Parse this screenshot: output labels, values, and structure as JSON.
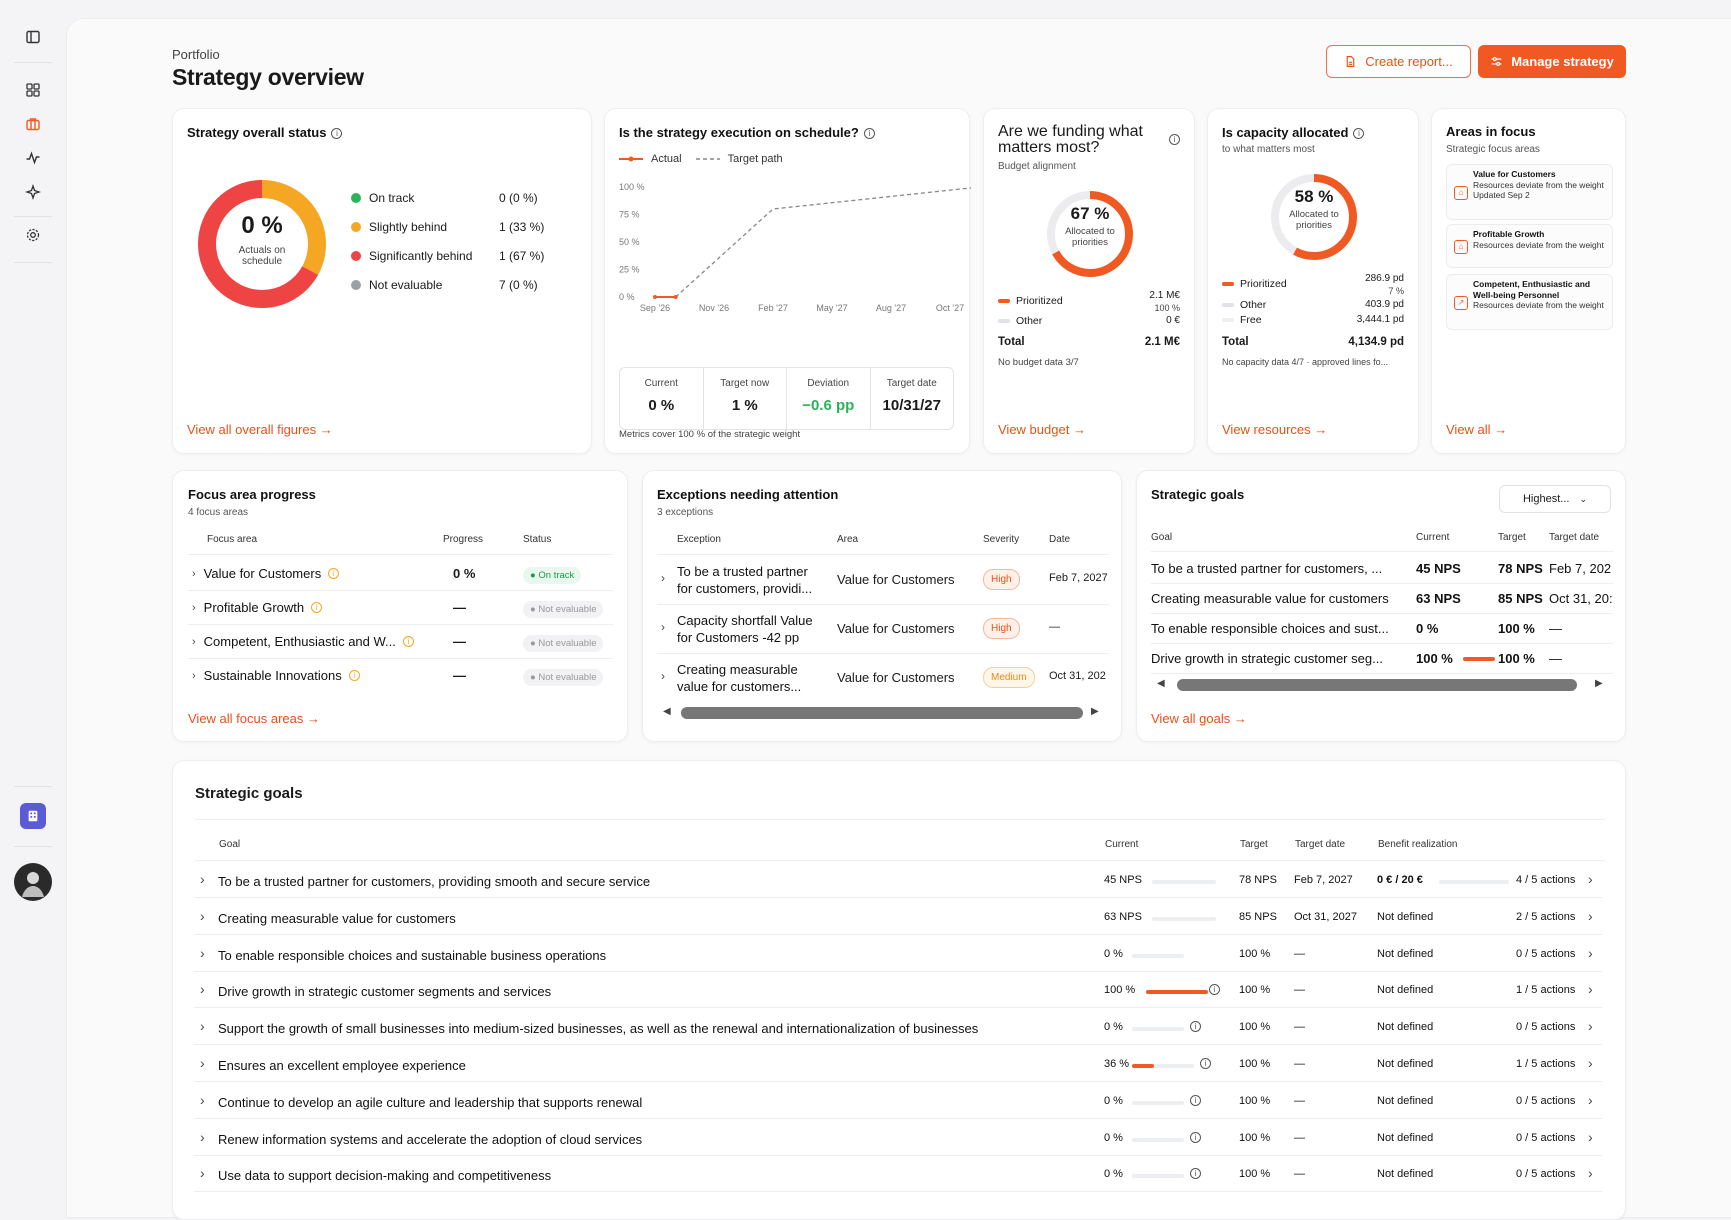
{
  "header": {
    "breadcrumb": "Portfolio",
    "title": "Strategy overview",
    "create_report": "Create report...",
    "manage_strategy": "Manage strategy"
  },
  "status_card": {
    "title": "Strategy overall status",
    "donut_value": "0 %",
    "donut_label": "Actuals on schedule",
    "legend": [
      {
        "label": "On track",
        "value": "0 (0 %)",
        "color": "#2bb35a",
        "fraction": 0
      },
      {
        "label": "Slightly behind",
        "value": "1 (33 %)",
        "color": "#f5a623",
        "fraction": 0.33
      },
      {
        "label": "Significantly behind",
        "value": "1 (67 %)",
        "color": "#ef4444",
        "fraction": 0.67
      },
      {
        "label": "Not evaluable",
        "value": "7 (0 %)",
        "color": "#9aa0a8",
        "fraction": 0
      }
    ],
    "link": "View all overall figures"
  },
  "schedule_card": {
    "title": "Is the strategy execution on schedule?",
    "legend_actual": "Actual",
    "legend_target": "Target path",
    "metrics": [
      {
        "label": "Current",
        "value": "0 %"
      },
      {
        "label": "Target now",
        "value": "1 %"
      },
      {
        "label": "Deviation",
        "value": "−0.6 pp"
      },
      {
        "label": "Target date",
        "value": "10/31/27"
      }
    ],
    "footnote": "Metrics cover 100 % of the strategic weight"
  },
  "chart_data": {
    "type": "line",
    "x": [
      "Sep '26",
      "Nov '26",
      "Feb '27",
      "May '27",
      "Aug '27",
      "Oct '27"
    ],
    "yticks": [
      "100 %",
      "75 %",
      "50 %",
      "25 %",
      "0 %"
    ],
    "ylim": [
      0,
      100
    ],
    "series": [
      {
        "name": "Actual",
        "points": [
          [
            0,
            0
          ],
          [
            0.35,
            0
          ]
        ]
      },
      {
        "name": "Target path",
        "points": [
          [
            0.35,
            0
          ],
          [
            2,
            80
          ],
          [
            5.5,
            100
          ]
        ]
      }
    ]
  },
  "budget_card": {
    "title": "Are we funding what matters most?",
    "subtitle": "Budget alignment",
    "donut_value": "67 %",
    "donut_label": "Allocated to priorities",
    "fraction": 0.67,
    "rows": [
      {
        "label": "Prioritized",
        "value": "2.1 M€",
        "sub": "100 %"
      },
      {
        "label": "Other",
        "value": "0 €"
      }
    ],
    "total_label": "Total",
    "total_value": "2.1 M€",
    "note": "No budget data 3/7",
    "link": "View budget"
  },
  "capacity_card": {
    "title": "Is capacity allocated",
    "subtitle": "to what matters most",
    "donut_value": "58 %",
    "donut_label": "Allocated to priorities",
    "fraction": 0.58,
    "rows": [
      {
        "label": "Prioritized",
        "value": "286.9 pd",
        "sub": "7 %"
      },
      {
        "label": "Other",
        "value": "403.9 pd"
      },
      {
        "label": "Free",
        "value": "3,444.1 pd"
      }
    ],
    "total_label": "Total",
    "total_value": "4,134.9 pd",
    "note": "No capacity data 4/7 · approved lines fo...",
    "link": "View resources"
  },
  "areas_card": {
    "title": "Areas in focus",
    "subtitle": "Strategic focus areas",
    "items": [
      {
        "name": "Value for Customers",
        "desc": "Resources deviate from the weight",
        "extra": "Updated Sep 2"
      },
      {
        "name": "Profitable Growth",
        "desc": "Resources deviate from the weight",
        "extra": ""
      },
      {
        "name": "Competent, Enthusiastic and Well-being Personnel",
        "desc": "Resources deviate from the weight",
        "extra": ""
      }
    ],
    "link": "View all"
  },
  "focus_card": {
    "title": "Focus area progress",
    "subtitle": "4 focus areas",
    "headers": [
      "Focus area",
      "Progress",
      "Status"
    ],
    "rows": [
      {
        "name": "Value for Customers",
        "progress": "0 %",
        "status": "On track"
      },
      {
        "name": "Profitable Growth",
        "progress": "—",
        "status": "Not evaluable"
      },
      {
        "name": "Competent, Enthusiastic and W...",
        "progress": "—",
        "status": "Not evaluable"
      },
      {
        "name": "Sustainable Innovations",
        "progress": "—",
        "status": "Not evaluable"
      }
    ],
    "link": "View all focus areas"
  },
  "exceptions_card": {
    "title": "Exceptions needing attention",
    "subtitle": "3 exceptions",
    "headers": [
      "Exception",
      "Area",
      "Severity",
      "Date"
    ],
    "rows": [
      {
        "l1": "To be a trusted partner",
        "l2": "for customers, providi...",
        "area": "Value for Customers",
        "severity": "High",
        "date": "Feb 7, 2027"
      },
      {
        "l1": "Capacity shortfall Value",
        "l2": "for Customers -42 pp",
        "area": "Value for Customers",
        "severity": "High",
        "date": "—"
      },
      {
        "l1": "Creating measurable",
        "l2": "value for customers...",
        "area": "Value for Customers",
        "severity": "Medium",
        "date": "Oct 31, 202"
      }
    ]
  },
  "goals_card": {
    "title": "Strategic goals",
    "sort": "Highest...",
    "headers": [
      "Goal",
      "Current",
      "Target",
      "Target date"
    ],
    "rows": [
      {
        "goal": "To be a trusted partner for customers, ...",
        "current": "45 NPS",
        "target": "78 NPS",
        "date": "Feb 7, 202"
      },
      {
        "goal": "Creating measurable value for customers",
        "current": "63 NPS",
        "target": "85 NPS",
        "date": "Oct 31, 20:"
      },
      {
        "goal": "To enable responsible choices and sust...",
        "current": "0 %",
        "target": "100 %",
        "date": "—"
      },
      {
        "goal": "Drive growth in strategic customer seg...",
        "current": "100 %",
        "target": "100 %",
        "date": "—"
      }
    ],
    "link": "View all goals"
  },
  "big_goals": {
    "title": "Strategic goals",
    "headers": [
      "Goal",
      "Current",
      "Target",
      "Target date",
      "Benefit realization"
    ],
    "rows": [
      {
        "goal": "To be a trusted partner for customers, providing smooth and secure service",
        "current": "45 NPS",
        "progress": 0,
        "target": "78 NPS",
        "date": "Feb 7, 2027",
        "benefit": "0 € / 20 €",
        "actions": "4 / 5 actions"
      },
      {
        "goal": "Creating measurable value for customers",
        "current": "63 NPS",
        "progress": 0,
        "target": "85 NPS",
        "date": "Oct 31, 2027",
        "benefit": "Not defined",
        "actions": "2 / 5 actions"
      },
      {
        "goal": "To enable responsible choices and sustainable business operations",
        "current": "0 %",
        "progress": 0,
        "target": "100 %",
        "date": "—",
        "benefit": "Not defined",
        "actions": "0 / 5 actions"
      },
      {
        "goal": "Drive growth in strategic customer segments and services",
        "current": "100 %",
        "progress": 1,
        "target": "100 %",
        "date": "—",
        "benefit": "Not defined",
        "actions": "1 / 5 actions"
      },
      {
        "goal": "Support the growth of small businesses into medium-sized businesses, as well as the renewal and internationalization of businesses",
        "current": "0 %",
        "progress": 0,
        "target": "100 %",
        "date": "—",
        "benefit": "Not defined",
        "actions": "0 / 5 actions"
      },
      {
        "goal": "Ensures an excellent employee experience",
        "current": "36 %",
        "progress": 0.36,
        "target": "100 %",
        "date": "—",
        "benefit": "Not defined",
        "actions": "1 / 5 actions"
      },
      {
        "goal": "Continue to develop an agile culture and leadership that supports renewal",
        "current": "0 %",
        "progress": 0,
        "target": "100 %",
        "date": "—",
        "benefit": "Not defined",
        "actions": "0 / 5 actions"
      },
      {
        "goal": "Renew information systems and accelerate the adoption of cloud services",
        "current": "0 %",
        "progress": 0,
        "target": "100 %",
        "date": "—",
        "benefit": "Not defined",
        "actions": "0 / 5 actions"
      },
      {
        "goal": "Use data to support decision-making and competitiveness",
        "current": "0 %",
        "progress": 0,
        "target": "100 %",
        "date": "—",
        "benefit": "Not defined",
        "actions": "0 / 5 actions"
      }
    ]
  },
  "colors": {
    "accent": "#f05a22",
    "on_track": "#2bb35a",
    "slightly": "#f5a623",
    "significant": "#ef4444",
    "not_eval": "#9aa0a8"
  }
}
